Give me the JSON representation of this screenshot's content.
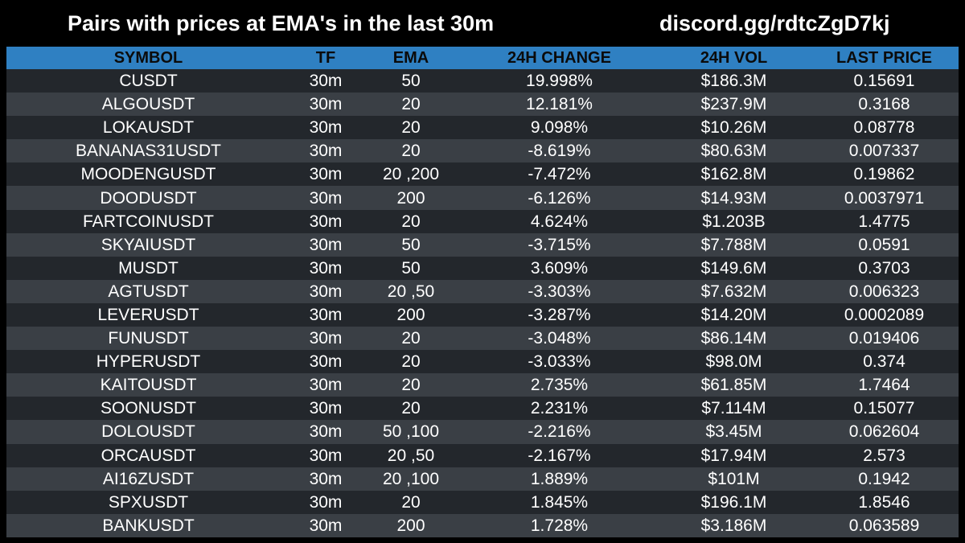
{
  "header": {
    "title": "Pairs with prices at EMA's in the last 30m",
    "discord": "discord.gg/rdtcZgD7kj"
  },
  "table": {
    "columns": [
      "SYMBOL",
      "TF",
      "EMA",
      "24H CHANGE",
      "24H VOL",
      "LAST PRICE"
    ],
    "rows": [
      [
        "CUSDT",
        "30m",
        "50",
        "19.998%",
        "$186.3M",
        "0.15691"
      ],
      [
        "ALGOUSDT",
        "30m",
        "20",
        "12.181%",
        "$237.9M",
        "0.3168"
      ],
      [
        "LOKAUSDT",
        "30m",
        "20",
        "9.098%",
        "$10.26M",
        "0.08778"
      ],
      [
        "BANANAS31USDT",
        "30m",
        "20",
        "-8.619%",
        "$80.63M",
        "0.007337"
      ],
      [
        "MOODENGUSDT",
        "30m",
        "20 ,200",
        "-7.472%",
        "$162.8M",
        "0.19862"
      ],
      [
        "DOODUSDT",
        "30m",
        "200",
        "-6.126%",
        "$14.93M",
        "0.0037971"
      ],
      [
        "FARTCOINUSDT",
        "30m",
        "20",
        "4.624%",
        "$1.203B",
        "1.4775"
      ],
      [
        "SKYAIUSDT",
        "30m",
        "50",
        "-3.715%",
        "$7.788M",
        "0.0591"
      ],
      [
        "MUSDT",
        "30m",
        "50",
        "3.609%",
        "$149.6M",
        "0.3703"
      ],
      [
        "AGTUSDT",
        "30m",
        "20 ,50",
        "-3.303%",
        "$7.632M",
        "0.006323"
      ],
      [
        "LEVERUSDT",
        "30m",
        "200",
        "-3.287%",
        "$14.20M",
        "0.0002089"
      ],
      [
        "FUNUSDT",
        "30m",
        "20",
        "-3.048%",
        "$86.14M",
        "0.019406"
      ],
      [
        "HYPERUSDT",
        "30m",
        "20",
        "-3.033%",
        "$98.0M",
        "0.374"
      ],
      [
        "KAITOUSDT",
        "30m",
        "20",
        "2.735%",
        "$61.85M",
        "1.7464"
      ],
      [
        "SOONUSDT",
        "30m",
        "20",
        "2.231%",
        "$7.114M",
        "0.15077"
      ],
      [
        "DOLOUSDT",
        "30m",
        "50 ,100",
        "-2.216%",
        "$3.45M",
        "0.062604"
      ],
      [
        "ORCAUSDT",
        "30m",
        "20 ,50",
        "-2.167%",
        "$17.94M",
        "2.573"
      ],
      [
        "AI16ZUSDT",
        "30m",
        "20 ,100",
        "1.889%",
        "$101M",
        "0.1942"
      ],
      [
        "SPXUSDT",
        "30m",
        "20",
        "1.845%",
        "$196.1M",
        "1.8546"
      ],
      [
        "BANKUSDT",
        "30m",
        "200",
        "1.728%",
        "$3.186M",
        "0.063589"
      ]
    ]
  },
  "colors": {
    "background": "#000000",
    "header_row": "#2f80c2",
    "row_dark": "#23272c",
    "row_light": "#3a3f45",
    "text": "#ffffff"
  }
}
